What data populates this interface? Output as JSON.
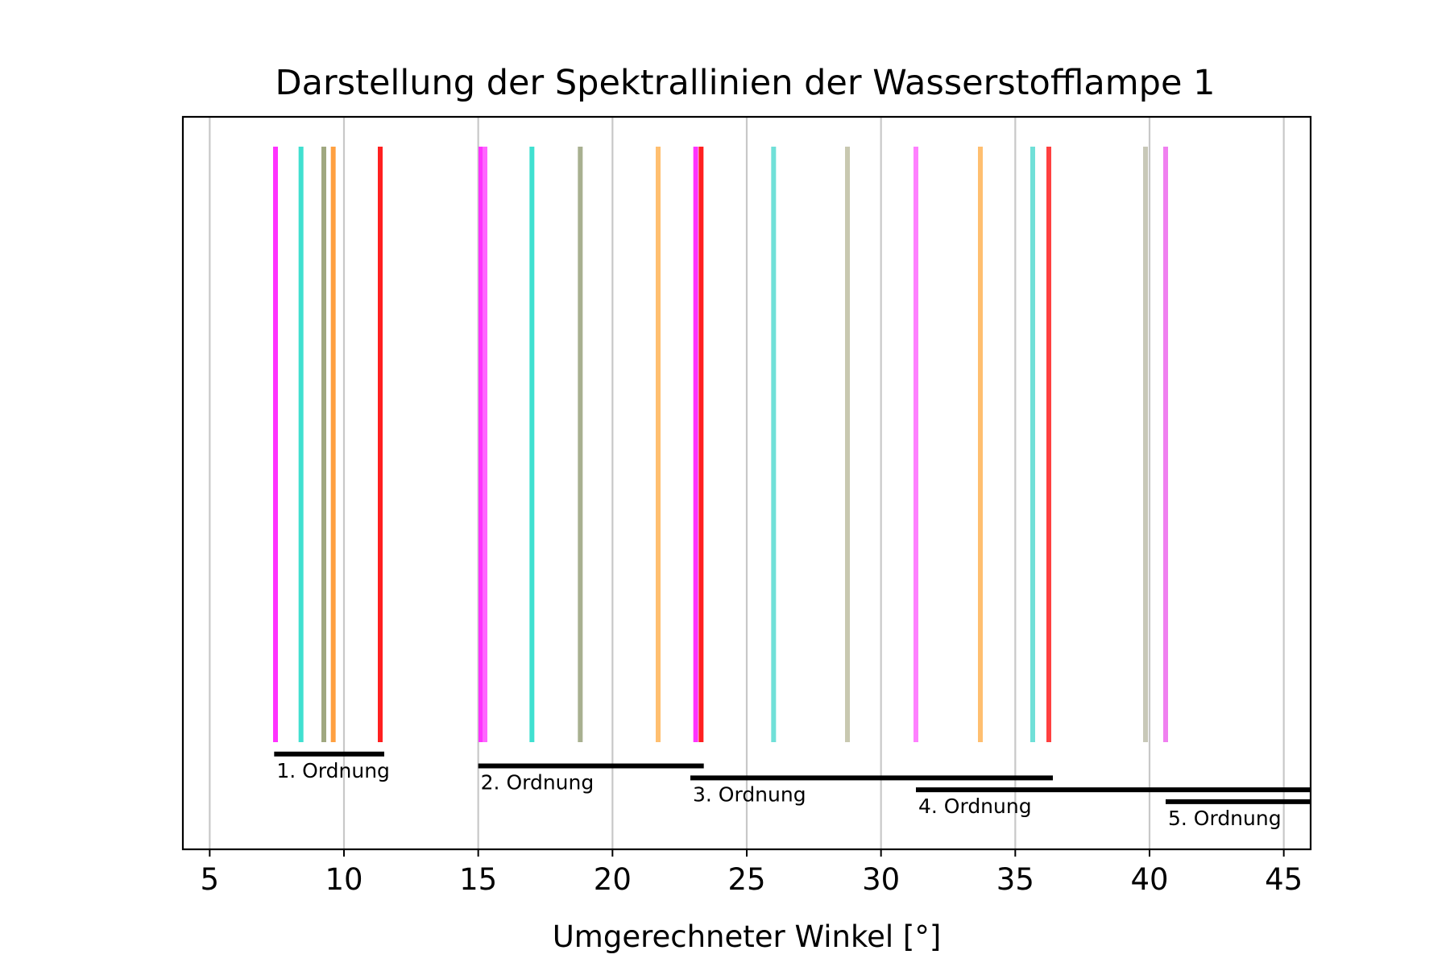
{
  "chart_data": {
    "type": "spectral-lines",
    "title": "Darstellung der Spektrallinien der Wasserstofflampe 1",
    "xlabel": "Umgerechneter Winkel [°]",
    "ylabel": "",
    "xlim": [
      4,
      46
    ],
    "ylim": [
      -0.18,
      1.05
    ],
    "xticks": [
      5,
      10,
      15,
      20,
      25,
      30,
      35,
      40,
      45
    ],
    "grid": "vertical",
    "lines": [
      {
        "x": 7.45,
        "color": "#ff33ff",
        "order": 1
      },
      {
        "x": 8.4,
        "color": "#40e0d0",
        "order": 1
      },
      {
        "x": 9.25,
        "color": "#a0a880",
        "order": 1
      },
      {
        "x": 9.6,
        "color": "#ffa040",
        "order": 1
      },
      {
        "x": 11.35,
        "color": "#ff2020",
        "order": 1
      },
      {
        "x": 15.1,
        "color": "#ff33ff",
        "order": 2
      },
      {
        "x": 15.25,
        "color": "#ff66ff",
        "order": 2
      },
      {
        "x": 17.0,
        "color": "#40e0d0",
        "order": 2
      },
      {
        "x": 18.8,
        "color": "#a8b090",
        "order": 2
      },
      {
        "x": 21.7,
        "color": "#ffbf70",
        "order": 2
      },
      {
        "x": 23.1,
        "color": "#ff33ff",
        "order": 2
      },
      {
        "x": 23.3,
        "color": "#ff2020",
        "order": 3
      },
      {
        "x": 26.0,
        "color": "#70e0d8",
        "order": 3
      },
      {
        "x": 28.75,
        "color": "#c8c8b0",
        "order": 3
      },
      {
        "x": 31.3,
        "color": "#ff80ff",
        "order": 3
      },
      {
        "x": 33.7,
        "color": "#ffbf70",
        "order": 3
      },
      {
        "x": 35.65,
        "color": "#70e0d8",
        "order": 3
      },
      {
        "x": 36.25,
        "color": "#ff4040",
        "order": 4
      },
      {
        "x": 39.85,
        "color": "#c8c8b8",
        "order": 4
      },
      {
        "x": 40.6,
        "color": "#f080f0",
        "order": 5
      }
    ],
    "line_bottom": 0,
    "line_top": 1,
    "orders": [
      {
        "label": "1. Ordnung",
        "x_start": 7.4,
        "x_end": 11.5,
        "y": -0.02
      },
      {
        "label": "2. Ordnung",
        "x_start": 15.0,
        "x_end": 23.4,
        "y": -0.04
      },
      {
        "label": "3. Ordnung",
        "x_start": 22.9,
        "x_end": 36.4,
        "y": -0.06
      },
      {
        "label": "4. Ordnung",
        "x_start": 31.3,
        "x_end": 46,
        "y": -0.08
      },
      {
        "label": "5. Ordnung",
        "x_start": 40.6,
        "x_end": 46,
        "y": -0.1
      }
    ]
  }
}
